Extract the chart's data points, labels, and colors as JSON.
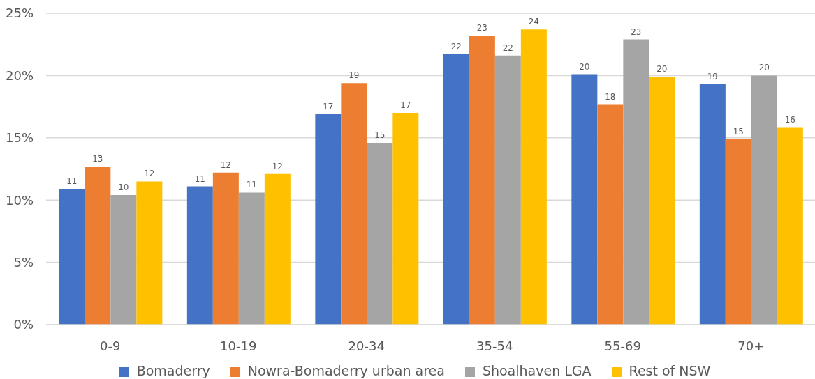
{
  "chart_data": {
    "type": "bar",
    "categories": [
      "0-9",
      "10-19",
      "20-34",
      "35-54",
      "55-69",
      "70+"
    ],
    "series": [
      {
        "name": "Bomaderry",
        "color": "#4472c4",
        "values": [
          10.9,
          11.1,
          16.9,
          21.7,
          20.1,
          19.3
        ],
        "value_labels": [
          "11",
          "11",
          "17",
          "22",
          "20",
          "19"
        ]
      },
      {
        "name": "Nowra-Bomaderry urban area",
        "color": "#ed7d31",
        "values": [
          12.7,
          12.2,
          19.4,
          23.2,
          17.7,
          14.9
        ],
        "value_labels": [
          "13",
          "12",
          "19",
          "23",
          "18",
          "15"
        ]
      },
      {
        "name": "Shoalhaven LGA",
        "color": "#a5a5a5",
        "values": [
          10.4,
          10.6,
          14.6,
          21.6,
          22.9,
          20.0
        ],
        "value_labels": [
          "10",
          "11",
          "15",
          "22",
          "23",
          "20"
        ]
      },
      {
        "name": "Rest of NSW",
        "color": "#ffc000",
        "values": [
          11.5,
          12.1,
          17.0,
          23.7,
          19.9,
          15.8
        ],
        "value_labels": [
          "12",
          "12",
          "17",
          "24",
          "20",
          "16"
        ]
      }
    ],
    "ylim": [
      0,
      25
    ],
    "yticks": [
      {
        "value": 0,
        "label": "0%"
      },
      {
        "value": 5,
        "label": "5%"
      },
      {
        "value": 10,
        "label": "10%"
      },
      {
        "value": 15,
        "label": "15%"
      },
      {
        "value": 20,
        "label": "20%"
      },
      {
        "value": 25,
        "label": "25%"
      }
    ],
    "grid": "y",
    "legend": "bottom"
  }
}
